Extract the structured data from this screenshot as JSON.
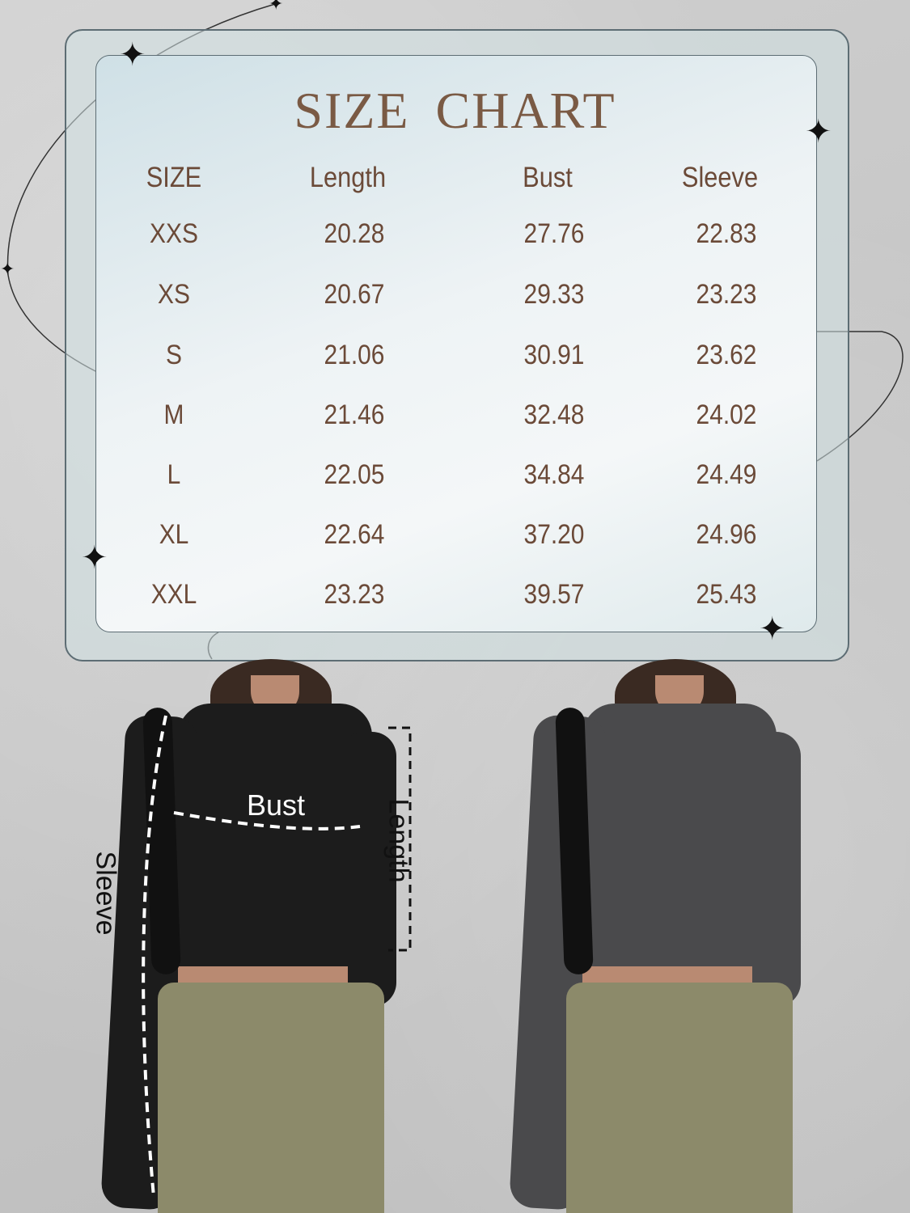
{
  "title": "SIZE CHART",
  "table": {
    "headers": [
      "SIZE",
      "Length",
      "Bust",
      "Sleeve"
    ],
    "rows": [
      [
        "XXS",
        "20.28",
        "27.76",
        "22.83"
      ],
      [
        "XS",
        "20.67",
        "29.33",
        "23.23"
      ],
      [
        "S",
        "21.06",
        "30.91",
        "23.62"
      ],
      [
        "M",
        "21.46",
        "32.48",
        "24.02"
      ],
      [
        "L",
        "22.05",
        "34.84",
        "24.49"
      ],
      [
        "XL",
        "22.64",
        "37.20",
        "24.96"
      ],
      [
        "XXL",
        "23.23",
        "39.57",
        "25.43"
      ]
    ]
  },
  "measure_labels": {
    "bust": "Bust",
    "length": "Length",
    "sleeve": "Sleeve"
  },
  "colors": {
    "text": "#6b4a38",
    "top_black": "#1c1c1c",
    "top_gray": "#4a4a4c",
    "pants": "#8c8a6a"
  }
}
